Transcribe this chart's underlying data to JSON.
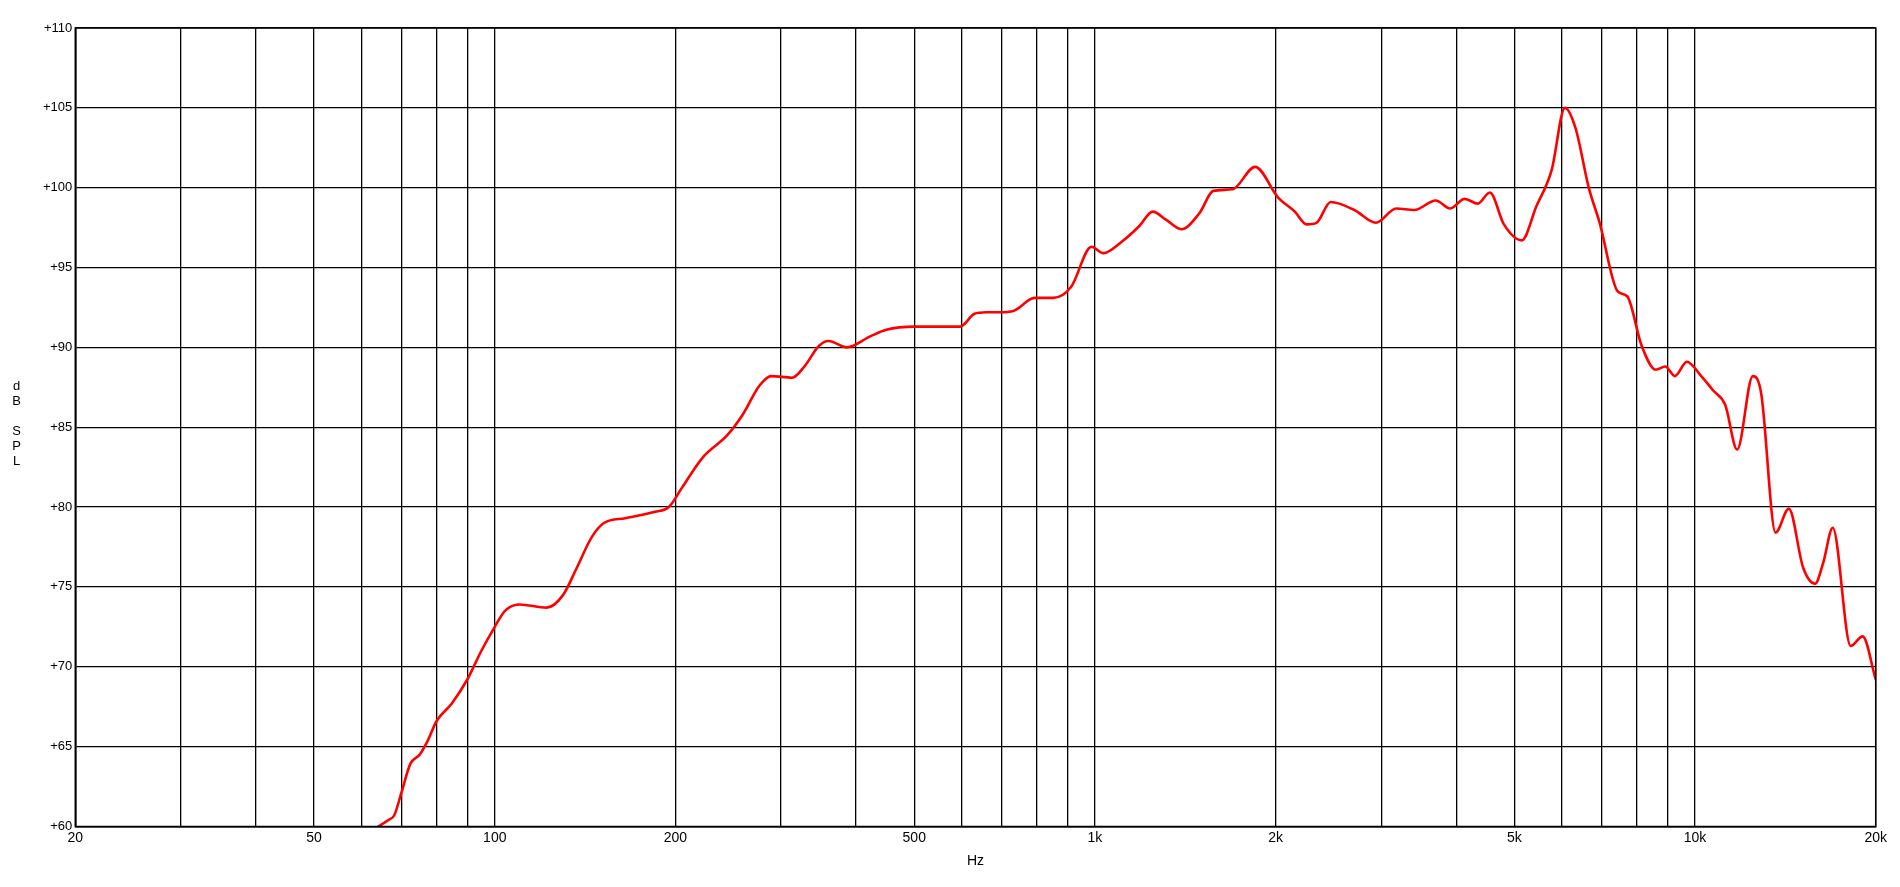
{
  "chart_data": {
    "type": "line",
    "xlabel": "Hz",
    "ylabel": "dB SPL",
    "log": "x",
    "grid": true,
    "legend": false,
    "marker": "none",
    "line_style": "solid",
    "xlim": [
      20,
      20000
    ],
    "xticks": [
      20,
      {
        "value": 30,
        "label": null
      },
      {
        "value": 40,
        "label": null
      },
      50,
      {
        "value": 60,
        "label": null
      },
      {
        "value": 70,
        "label": null
      },
      {
        "value": 80,
        "label": null
      },
      {
        "value": 90,
        "label": null
      },
      100,
      200,
      {
        "value": 300,
        "label": null
      },
      {
        "value": 400,
        "label": null
      },
      500,
      {
        "value": 600,
        "label": null
      },
      {
        "value": 700,
        "label": null
      },
      {
        "value": 800,
        "label": null
      },
      {
        "value": 900,
        "label": null
      },
      {
        "value": 1000,
        "label": "1k"
      },
      {
        "value": 2000,
        "label": "2k"
      },
      {
        "value": 3000,
        "label": null
      },
      {
        "value": 4000,
        "label": null
      },
      {
        "value": 5000,
        "label": "5k"
      },
      {
        "value": 6000,
        "label": null
      },
      {
        "value": 7000,
        "label": null
      },
      {
        "value": 8000,
        "label": null
      },
      {
        "value": 9000,
        "label": null
      },
      {
        "value": 10000,
        "label": "10k"
      },
      {
        "value": 20000,
        "label": "20k"
      }
    ],
    "ylim": [
      60,
      110
    ],
    "yticks": [
      {
        "value": 60,
        "label": "+60"
      },
      {
        "value": 65,
        "label": "+65"
      },
      {
        "value": 70,
        "label": "+70"
      },
      {
        "value": 75,
        "label": "+75"
      },
      {
        "value": 80,
        "label": "+80"
      },
      {
        "value": 85,
        "label": "+85"
      },
      {
        "value": 90,
        "label": "+90"
      },
      {
        "value": 95,
        "label": "+95"
      },
      {
        "value": 100,
        "label": "+100"
      },
      {
        "value": 105,
        "label": "+105"
      },
      {
        "value": 110,
        "label": "+110"
      }
    ],
    "series": [
      {
        "color": "#ff0000",
        "x": [
          64,
          66.5,
          68,
          70,
          72.3,
          75,
          77.4,
          80,
          84.8,
          90,
          95,
          100,
          104,
          110,
          122,
          130,
          137,
          145,
          152,
          165,
          185,
          195,
          205,
          222,
          244,
          259,
          276,
          289,
          313,
          328,
          347,
          360,
          386,
          423,
          449,
          500,
          569,
          596,
          630,
          659,
          690,
          733,
          793,
          852,
          913,
          987,
          1033,
          1107,
          1186,
          1248,
          1313,
          1393,
          1493,
          1575,
          1695,
          1849,
          2018,
          2153,
          2254,
          2339,
          2472,
          2706,
          2939,
          3177,
          3405,
          3698,
          3908,
          4130,
          4346,
          4551,
          4803,
          5144,
          5436,
          5768,
          6070,
          6325,
          6651,
          6935,
          7431,
          7707,
          8147,
          8598,
          8920,
          9256,
          9689,
          10240,
          10720,
          11226,
          11755,
          12480,
          12890,
          13620,
          14330,
          15140,
          15850,
          16350,
          16960,
          18170,
          19020,
          20000
        ],
        "values": [
          60,
          60.4,
          60.7,
          62.2,
          63.9,
          64.5,
          65.4,
          66.6,
          67.7,
          69.2,
          71,
          72.5,
          73.5,
          73.9,
          73.7,
          74.5,
          76.2,
          78.1,
          79,
          79.3,
          79.7,
          80,
          81.2,
          83.1,
          84.5,
          85.8,
          87.6,
          88.2,
          88.1,
          88.8,
          90.1,
          90.4,
          90,
          90.7,
          91.1,
          91.3,
          91.3,
          91.3,
          92.1,
          92.2,
          92.2,
          92.3,
          93.1,
          93.1,
          93.8,
          96.3,
          95.9,
          96.6,
          97.6,
          98.5,
          98,
          97.4,
          98.4,
          99.8,
          99.9,
          101.3,
          99.4,
          98.5,
          97.7,
          97.8,
          99.1,
          98.6,
          97.8,
          98.7,
          98.6,
          99.2,
          98.7,
          99.3,
          99,
          99.7,
          97.7,
          96.7,
          98.8,
          101.1,
          105,
          103.7,
          100,
          97.8,
          93.5,
          93.2,
          90.1,
          88.6,
          88.8,
          88.2,
          89.1,
          88.2,
          87.3,
          86.4,
          83.6,
          88.2,
          87.1,
          78.4,
          79.9,
          76.2,
          75.2,
          76.5,
          78.7,
          71.3,
          71.9,
          69.2
        ]
      }
    ]
  }
}
